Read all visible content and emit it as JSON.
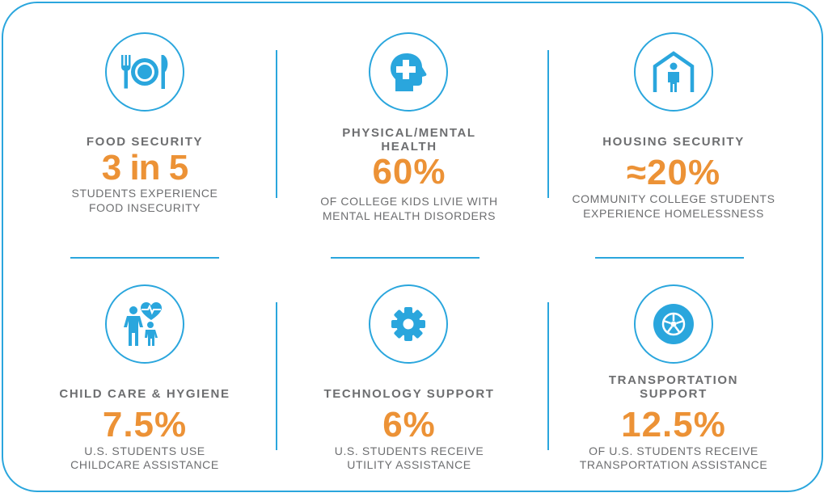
{
  "stats": [
    {
      "title": "FOOD SECURITY",
      "stat": "3 in 5",
      "desc1": "STUDENTS EXPERIENCE",
      "desc2": "FOOD INSECURITY",
      "icon": "plate-fork-knife-icon"
    },
    {
      "title1": "PHYSICAL/MENTAL",
      "title2": "HEALTH",
      "stat": "60%",
      "desc1": "OF COLLEGE KIDS LIVIE WITH",
      "desc2": "MENTAL HEALTH DISORDERS",
      "icon": "head-medical-cross-icon"
    },
    {
      "title": "HOUSING SECURITY",
      "stat": "≈20%",
      "desc1": "COMMUNITY COLLEGE STUDENTS",
      "desc2": "EXPERIENCE HOMELESSNESS",
      "icon": "person-in-house-icon"
    },
    {
      "title": "CHILD CARE & HYGIENE",
      "stat": "7.5%",
      "desc1": "U.S. STUDENTS USE",
      "desc2": "CHILDCARE ASSISTANCE",
      "icon": "parent-child-heart-icon"
    },
    {
      "title": "TECHNOLOGY SUPPORT",
      "stat": "6%",
      "desc1": "U.S. STUDENTS RECEIVE",
      "desc2": "UTILITY ASSISTANCE",
      "icon": "gear-icon"
    },
    {
      "title1": "TRANSPORTATION",
      "title2": "SUPPORT",
      "stat": "12.5%",
      "desc1": "OF U.S. STUDENTS RECEIVE",
      "desc2": "TRANSPORTATION ASSISTANCE",
      "icon": "wheel-icon"
    }
  ],
  "colors": {
    "accent_blue": "#2aa6dd",
    "stat_orange": "#ec9236",
    "text_gray": "#6d6e70"
  }
}
